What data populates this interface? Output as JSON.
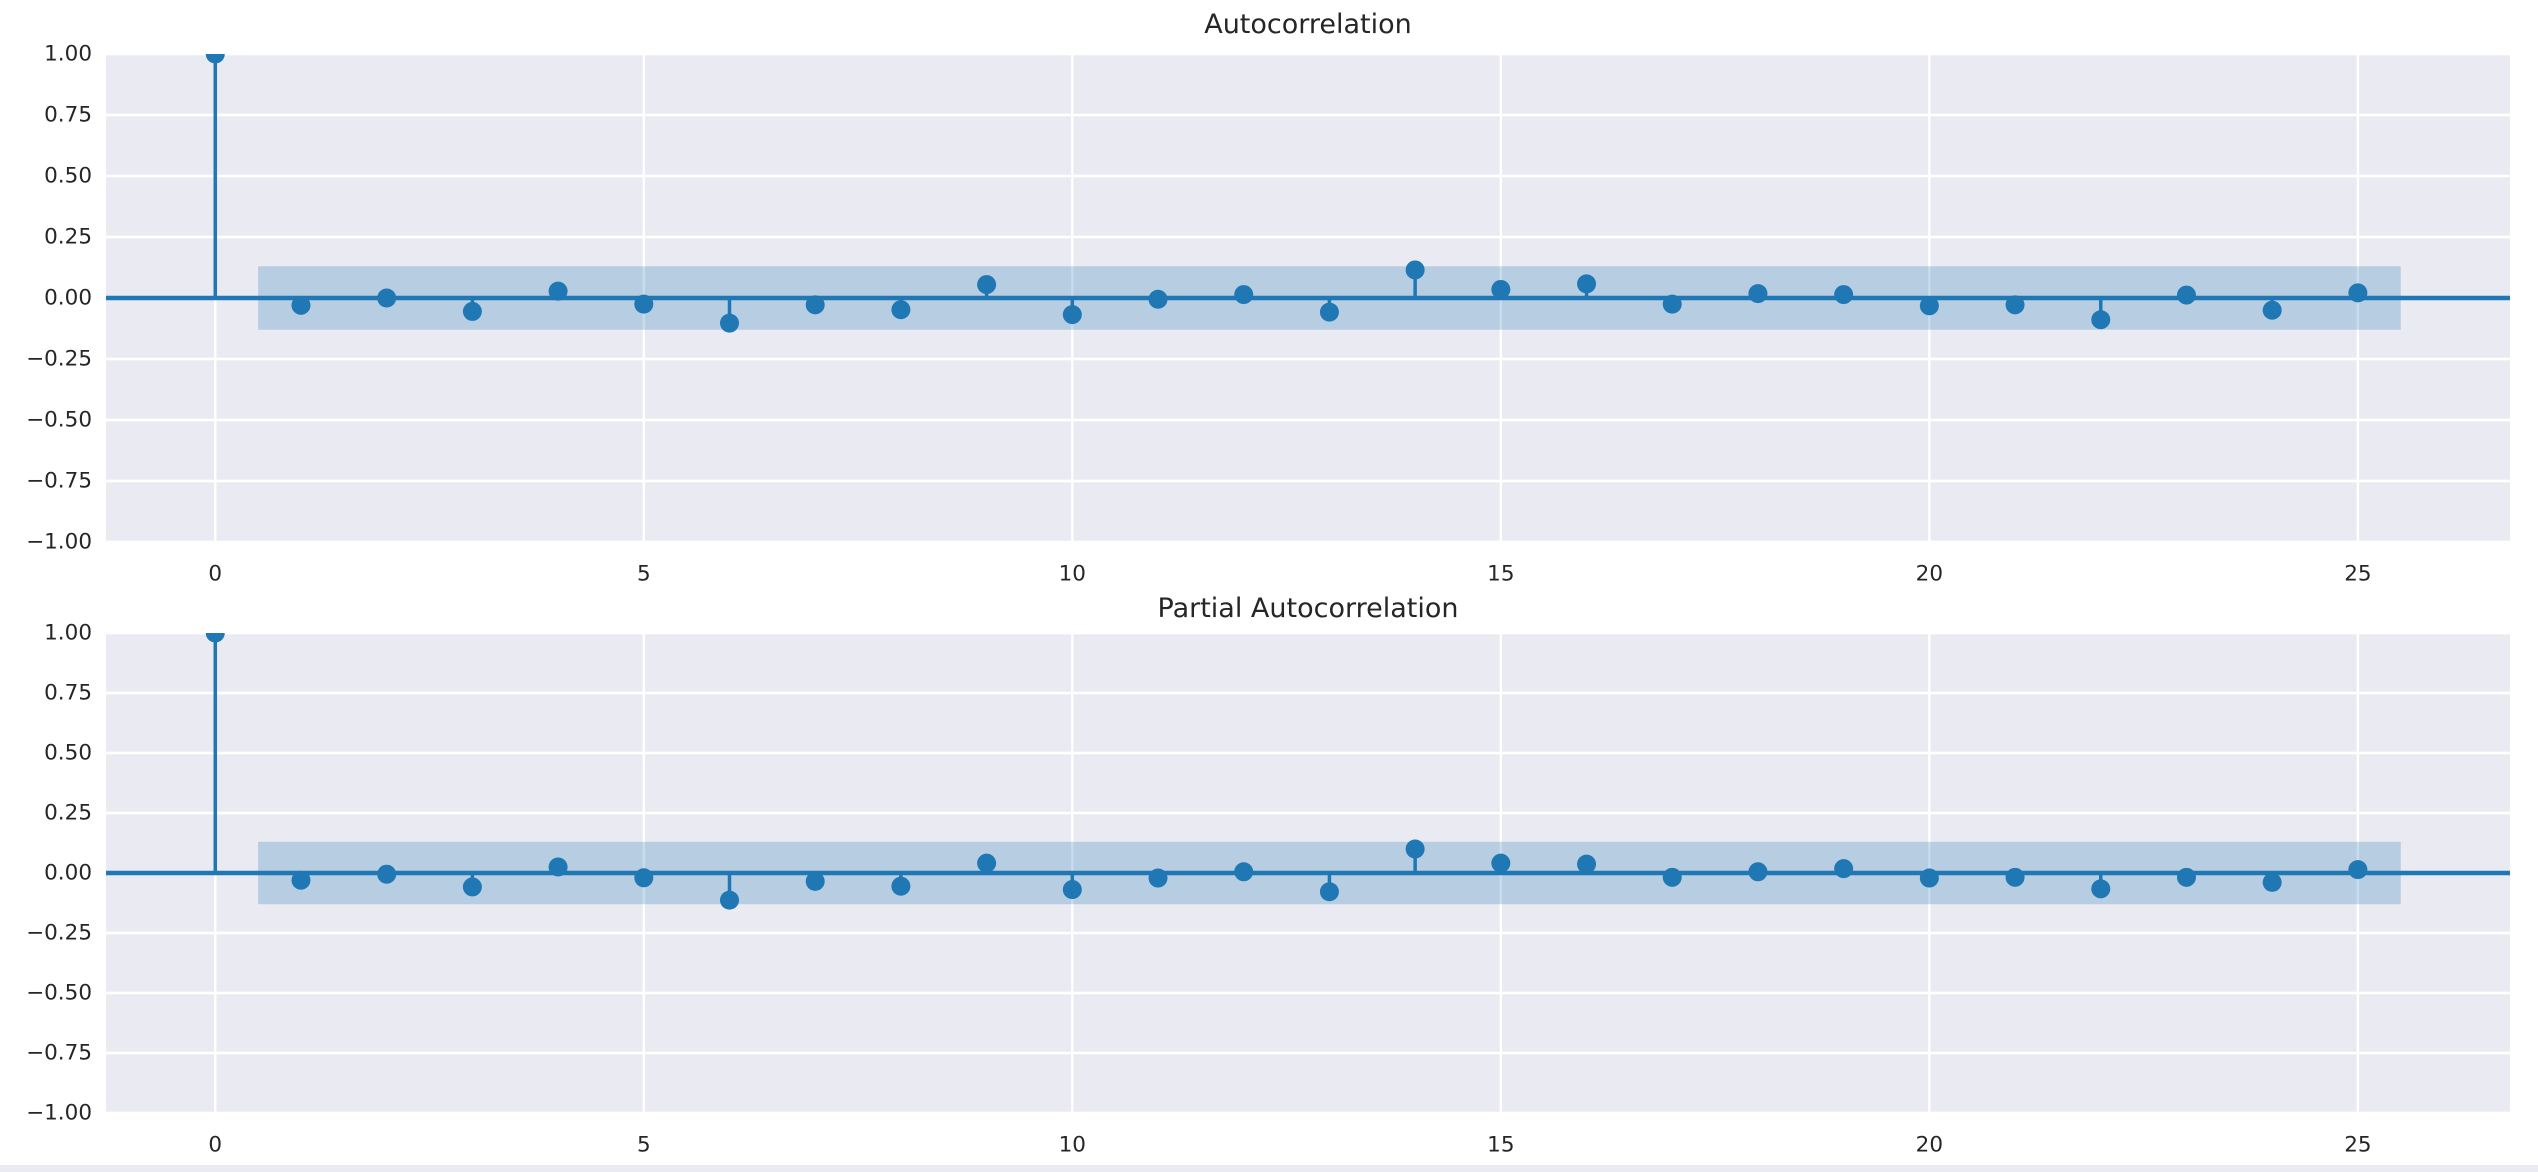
{
  "figure": {
    "background": "#ffffff",
    "axes_background": "#eaeaf2",
    "grid_color": "#ffffff",
    "accent_color": "#1f77b4",
    "band_fill": "rgba(31,119,180,0.25)",
    "text_color": "#262626",
    "bottom_strip_color": "#eaeaf2"
  },
  "chart_data": [
    {
      "type": "stem",
      "title": "Autocorrelation",
      "x": [
        0,
        1,
        2,
        3,
        4,
        5,
        6,
        7,
        8,
        9,
        10,
        11,
        12,
        13,
        14,
        15,
        16,
        17,
        18,
        19,
        20,
        21,
        22,
        23,
        24,
        25
      ],
      "values": [
        1.0,
        -0.03,
        0.0,
        -0.055,
        0.028,
        -0.025,
        -0.103,
        -0.028,
        -0.048,
        0.055,
        -0.068,
        -0.005,
        0.014,
        -0.058,
        0.115,
        0.035,
        0.058,
        -0.025,
        0.018,
        0.014,
        -0.032,
        -0.028,
        -0.089,
        0.012,
        -0.05,
        0.021
      ],
      "confidence_interval": 0.13,
      "band_x_range": [
        0.5,
        25.5
      ],
      "xlim": [
        -1.275,
        26.775
      ],
      "ylim": [
        -1.0,
        1.0
      ],
      "grid": true,
      "legend": "none",
      "xticks": {
        "values": [
          0,
          5,
          10,
          15,
          20,
          25
        ],
        "labels": [
          "0",
          "5",
          "10",
          "15",
          "20",
          "25"
        ]
      },
      "yticks": {
        "values": [
          1.0,
          0.75,
          0.5,
          0.25,
          0.0,
          -0.25,
          -0.5,
          -0.75,
          -1.0
        ],
        "labels": [
          "1.00",
          "0.75",
          "0.50",
          "0.25",
          "0.00",
          "−0.25",
          "−0.50",
          "−0.75",
          "−1.00"
        ]
      }
    },
    {
      "type": "stem",
      "title": "Partial Autocorrelation",
      "x": [
        0,
        1,
        2,
        3,
        4,
        5,
        6,
        7,
        8,
        9,
        10,
        11,
        12,
        13,
        14,
        15,
        16,
        17,
        18,
        19,
        20,
        21,
        22,
        23,
        24,
        25
      ],
      "values": [
        1.0,
        -0.03,
        -0.005,
        -0.058,
        0.025,
        -0.02,
        -0.113,
        -0.035,
        -0.055,
        0.041,
        -0.069,
        -0.021,
        0.005,
        -0.078,
        0.1,
        0.041,
        0.037,
        -0.018,
        0.005,
        0.018,
        -0.021,
        -0.018,
        -0.066,
        -0.018,
        -0.039,
        0.014
      ],
      "confidence_interval": 0.13,
      "band_x_range": [
        0.5,
        25.5
      ],
      "xlim": [
        -1.275,
        26.775
      ],
      "ylim": [
        -1.0,
        1.0
      ],
      "grid": true,
      "legend": "none",
      "xticks": {
        "values": [
          0,
          5,
          10,
          15,
          20,
          25
        ],
        "labels": [
          "0",
          "5",
          "10",
          "15",
          "20",
          "25"
        ]
      },
      "yticks": {
        "values": [
          1.0,
          0.75,
          0.5,
          0.25,
          0.0,
          -0.25,
          -0.5,
          -0.75,
          -1.0
        ],
        "labels": [
          "1.00",
          "0.75",
          "0.50",
          "0.25",
          "0.00",
          "−0.25",
          "−0.50",
          "−0.75",
          "−1.00"
        ]
      }
    }
  ]
}
